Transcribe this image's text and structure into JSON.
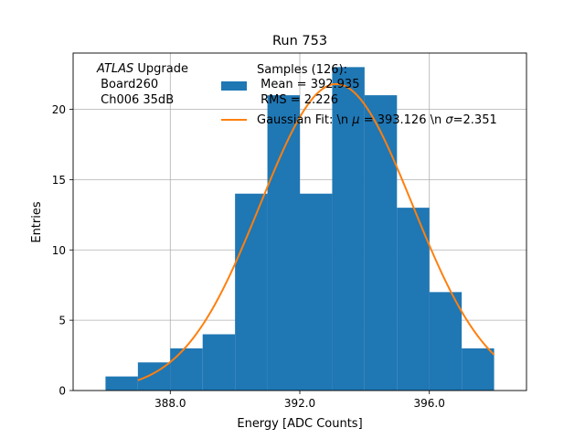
{
  "chart_data": {
    "type": "bar",
    "title": "Run 753",
    "xlabel": "Energy [ADC Counts]",
    "ylabel": "Entries",
    "xlim": [
      385.0,
      399.0
    ],
    "ylim": [
      0,
      24
    ],
    "grid": true,
    "x_ticks": [
      388.0,
      392.0,
      396.0
    ],
    "x_tick_labels": [
      "388.0",
      "392.0",
      "396.0"
    ],
    "y_ticks": [
      0,
      5,
      10,
      15,
      20
    ],
    "y_tick_labels": [
      "0",
      "5",
      "10",
      "15",
      "20"
    ],
    "bins": {
      "edges": [
        386,
        387,
        388,
        389,
        390,
        391,
        392,
        393,
        394,
        395,
        396,
        397,
        398
      ],
      "counts": [
        1,
        2,
        3,
        4,
        14,
        21,
        14,
        23,
        21,
        13,
        7,
        3
      ],
      "color": "#1f77b4"
    },
    "fit": {
      "mu": 393.126,
      "sigma": 2.351,
      "amplitude": 21.8,
      "x_range": [
        387.0,
        398.0
      ],
      "color": "#ff7f0e"
    },
    "annotation": {
      "atlas": "ATLAS",
      "upgrade": " Upgrade",
      "line2": " Board260",
      "line3": " Ch006 35dB"
    },
    "legend": {
      "position": "top-right",
      "samples_line1": "Samples (126):",
      "samples_line2": " Mean = 392.935",
      "samples_line3": " RMS = 2.226",
      "fit_prefix": "Gaussian Fit: \\n ",
      "fit_mu_symbol": "μ",
      "fit_middle": " = 393.126 \\n ",
      "fit_sigma_symbol": "σ",
      "fit_suffix": "=2.351"
    }
  }
}
